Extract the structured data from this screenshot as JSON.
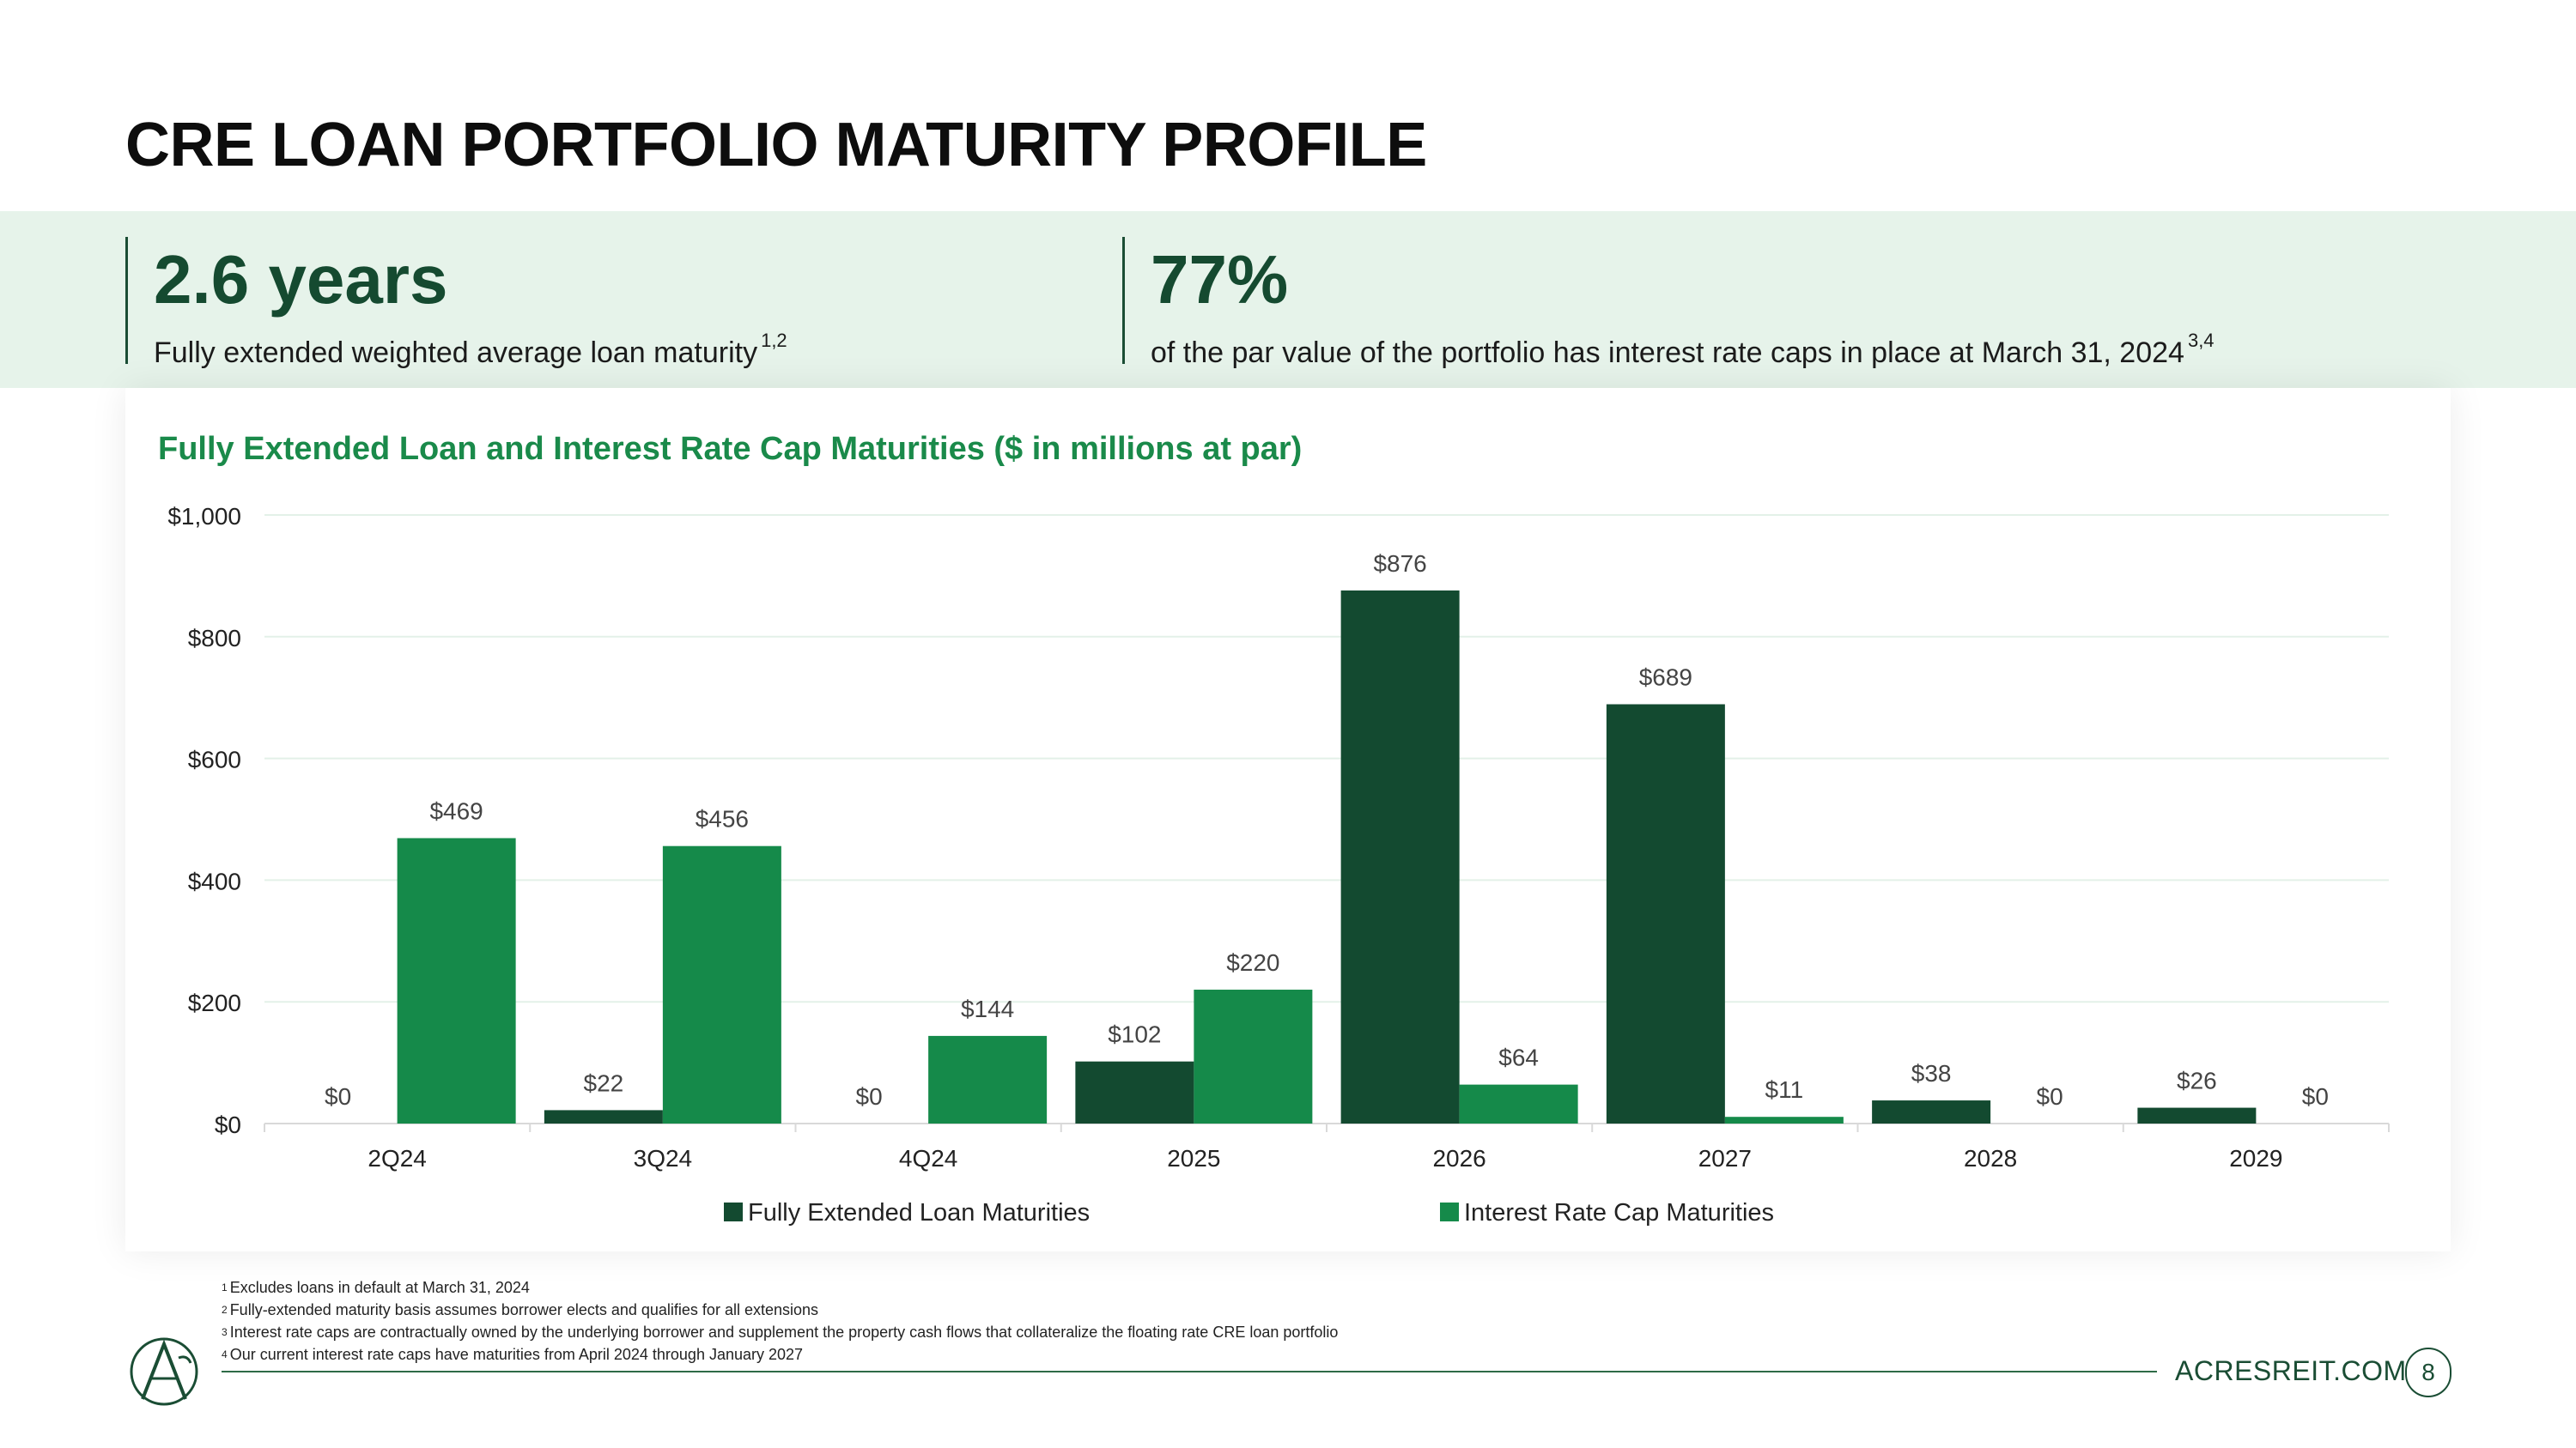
{
  "page": {
    "title": "CRE LOAN PORTFOLIO MATURITY PROFILE",
    "website": "ACRESREIT.COM",
    "page_number": "8"
  },
  "stats": [
    {
      "value": "2.6 years",
      "description": "Fully extended weighted average loan maturity",
      "footnote": "1,2"
    },
    {
      "value": "77%",
      "description": "of the par value of the portfolio has interest rate caps in place at March 31, 2024",
      "footnote": "3,4"
    }
  ],
  "colors": {
    "loan": "#134a30",
    "cap": "#158a4a",
    "accent": "#1a8a4a",
    "band": "#e6f3ea"
  },
  "chart_data": {
    "type": "bar",
    "title": "Fully Extended Loan and Interest Rate Cap Maturities ($ in millions at par)",
    "categories": [
      "2Q24",
      "3Q24",
      "4Q24",
      "2025",
      "2026",
      "2027",
      "2028",
      "2029"
    ],
    "series": [
      {
        "name": "Fully Extended Loan Maturities",
        "values": [
          0,
          22,
          0,
          102,
          876,
          689,
          38,
          26
        ],
        "labels": [
          "$0",
          "$22",
          "$0",
          "$102",
          "$876",
          "$689",
          "$38",
          "$26"
        ]
      },
      {
        "name": "Interest Rate Cap Maturities",
        "values": [
          469,
          456,
          144,
          220,
          64,
          11,
          0,
          0
        ],
        "labels": [
          "$469",
          "$456",
          "$144",
          "$220",
          "$64",
          "$11",
          "$0",
          "$0"
        ]
      }
    ],
    "ylim": [
      0,
      1000
    ],
    "yticks": [
      0,
      200,
      400,
      600,
      800,
      1000
    ],
    "ytick_labels": [
      "$0",
      "$200",
      "$400",
      "$600",
      "$800",
      "$1,000"
    ],
    "grid": true,
    "legend": "bottom-center"
  },
  "footnotes": [
    {
      "mark": "1",
      "text": "Excludes loans in default at March 31, 2024"
    },
    {
      "mark": "2",
      "text": "Fully-extended maturity basis assumes borrower elects and qualifies for all extensions"
    },
    {
      "mark": "3",
      "text": "Interest rate caps are contractually owned by the underlying borrower and supplement the property cash flows that collateralize the floating rate CRE loan portfolio"
    },
    {
      "mark": "4",
      "text": "Our current interest rate caps have maturities from April 2024 through January 2027"
    }
  ]
}
